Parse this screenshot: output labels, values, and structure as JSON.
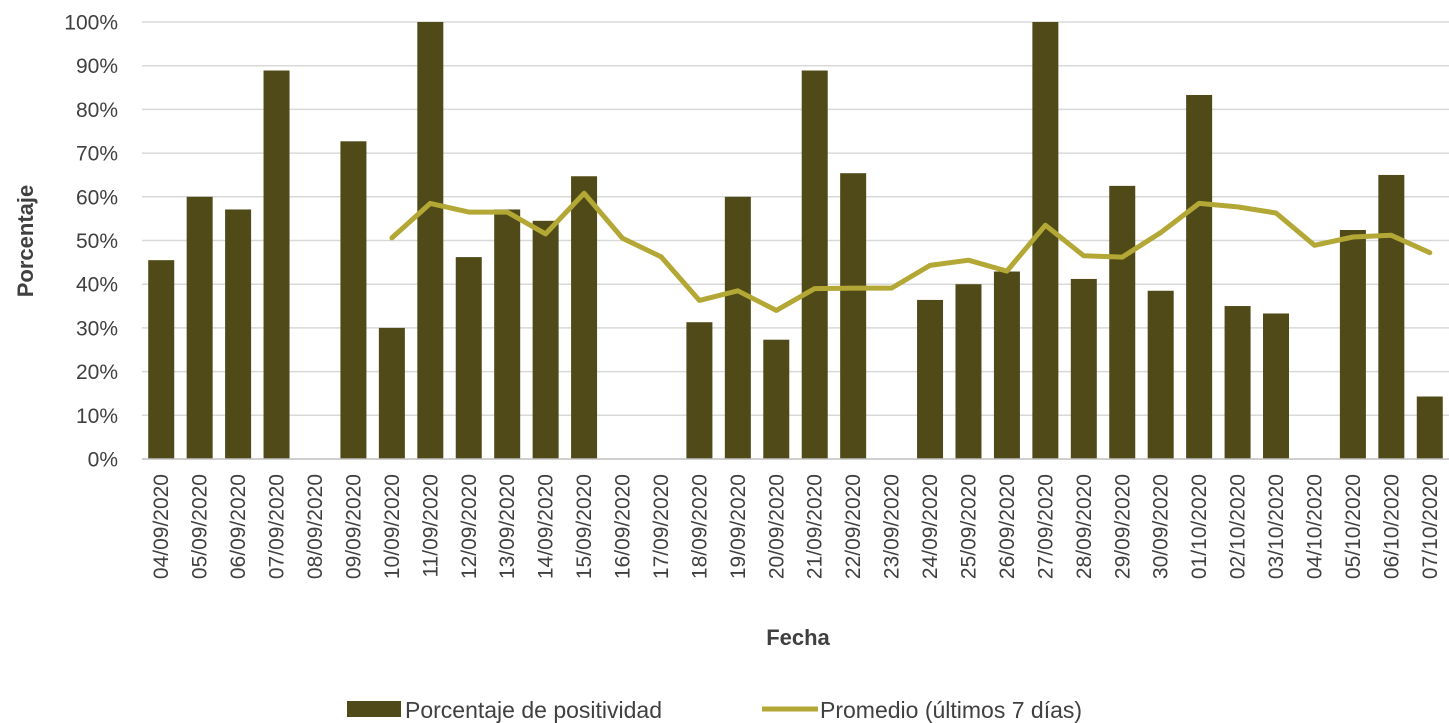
{
  "chart_data": {
    "type": "bar",
    "xlabel": "Fecha",
    "ylabel": "Porcentaje",
    "ylim": [
      0,
      100
    ],
    "yticks": [
      "0%",
      "10%",
      "20%",
      "30%",
      "40%",
      "50%",
      "60%",
      "70%",
      "80%",
      "90%",
      "100%"
    ],
    "grid": true,
    "legend_position": "bottom",
    "categories": [
      "04/09/2020",
      "05/09/2020",
      "06/09/2020",
      "07/09/2020",
      "08/09/2020",
      "09/09/2020",
      "10/09/2020",
      "11/09/2020",
      "12/09/2020",
      "13/09/2020",
      "14/09/2020",
      "15/09/2020",
      "16/09/2020",
      "17/09/2020",
      "18/09/2020",
      "19/09/2020",
      "20/09/2020",
      "21/09/2020",
      "22/09/2020",
      "23/09/2020",
      "24/09/2020",
      "25/09/2020",
      "26/09/2020",
      "27/09/2020",
      "28/09/2020",
      "29/09/2020",
      "30/09/2020",
      "01/10/2020",
      "02/10/2020",
      "03/10/2020",
      "04/10/2020",
      "05/10/2020",
      "06/10/2020",
      "07/10/2020"
    ],
    "series": [
      {
        "name": "Porcentaje de positividad",
        "type": "bar",
        "color": "#4f4a17",
        "values": [
          45.5,
          60,
          57.1,
          88.9,
          0,
          72.7,
          30,
          100,
          46.2,
          57.1,
          54.5,
          64.7,
          0,
          0,
          31.3,
          60,
          27.3,
          88.9,
          65.4,
          0,
          36.4,
          40,
          42.9,
          100,
          41.2,
          62.5,
          38.5,
          83.3,
          35,
          33.3,
          0,
          52.4,
          65,
          14.3
        ]
      },
      {
        "name": "Promedio (últimos 7 días)",
        "type": "line",
        "color": "#b3a735",
        "values": [
          null,
          null,
          null,
          null,
          null,
          null,
          50.6,
          58.5,
          56.5,
          56.5,
          51.5,
          60.8,
          50.5,
          46.3,
          36.3,
          38.5,
          34.0,
          39.0,
          39.1,
          39.1,
          44.3,
          45.5,
          43.0,
          53.5,
          46.5,
          46.2,
          51.8,
          58.5,
          57.7,
          56.3,
          48.9,
          50.8,
          51.2,
          47.2
        ]
      }
    ]
  }
}
